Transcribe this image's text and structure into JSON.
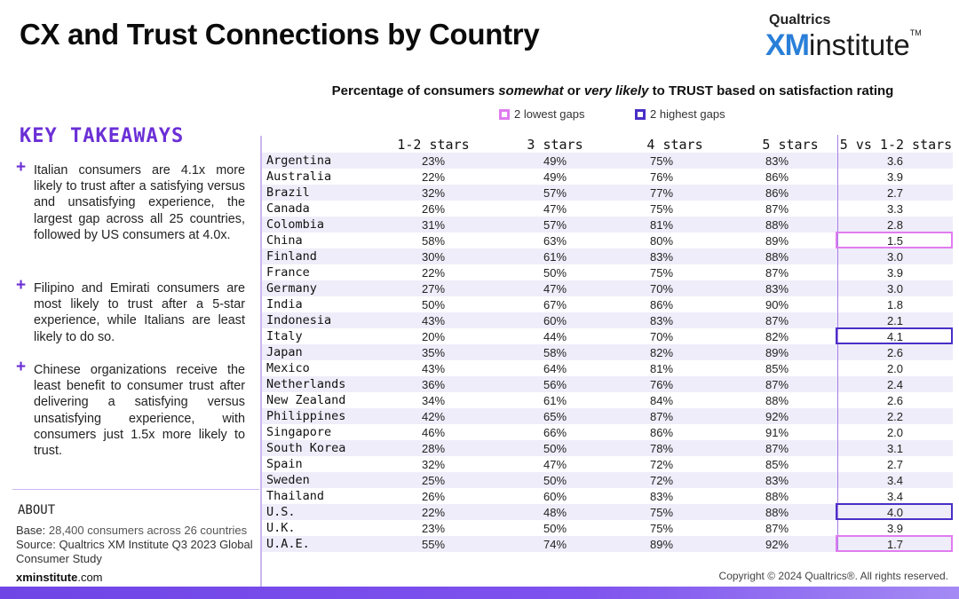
{
  "header": {
    "title": "CX and Trust Connections by Country",
    "brand_top": "Qualtrics",
    "brand_xm": "XM",
    "brand_institute": "institute",
    "brand_tm": "TM"
  },
  "chart_title": {
    "prefix": "Percentage of consumers ",
    "em1": "somewhat",
    "mid": " or ",
    "em2": "very likely",
    "suffix": " to TRUST based on satisfaction rating"
  },
  "legend": {
    "lowest_label": "2 lowest gaps",
    "highest_label": "2 highest gaps",
    "lowest_color": "#e07cf0",
    "highest_color": "#4a2fc7"
  },
  "key_takeaways": {
    "title": "KEY TAKEAWAYS",
    "items": [
      "Italian consumers are 4.1x more likely to trust after a satisfying versus and unsatisfying experience, the largest gap across all 25 countries, followed by US consumers at 4.0x.",
      "Filipino and Emirati consumers are most likely to trust after a 5-star experience, while Italians are least likely to do so.",
      "Chinese organizations receive the least benefit to consumer trust after delivering a satisfying versus unsatisfying experience, with consumers just 1.5x more likely to trust."
    ]
  },
  "about": {
    "title": "ABOUT",
    "base_label": "Base:",
    "base_text": "28,400 consumers across 26 countries",
    "source_label": "Source:",
    "source_text": "Qualtrics XM Institute Q3 2023 Global Consumer Study",
    "site_bold": "xminstitute",
    "site_rest": ".com"
  },
  "copyright": "Copyright © 2024 Qualtrics®. All rights reserved.",
  "chart_data": {
    "type": "table",
    "columns": [
      "1-2 stars",
      "3 stars",
      "4 stars",
      "5 stars",
      "5 vs 1-2 stars"
    ],
    "rows": [
      {
        "country": "Argentina",
        "s12": "23%",
        "s3": "49%",
        "s4": "75%",
        "s5": "83%",
        "ratio": "3.6"
      },
      {
        "country": "Australia",
        "s12": "22%",
        "s3": "49%",
        "s4": "76%",
        "s5": "86%",
        "ratio": "3.9"
      },
      {
        "country": "Brazil",
        "s12": "32%",
        "s3": "57%",
        "s4": "77%",
        "s5": "86%",
        "ratio": "2.7"
      },
      {
        "country": "Canada",
        "s12": "26%",
        "s3": "47%",
        "s4": "75%",
        "s5": "87%",
        "ratio": "3.3"
      },
      {
        "country": "Colombia",
        "s12": "31%",
        "s3": "57%",
        "s4": "81%",
        "s5": "88%",
        "ratio": "2.8"
      },
      {
        "country": "China",
        "s12": "58%",
        "s3": "63%",
        "s4": "80%",
        "s5": "89%",
        "ratio": "1.5"
      },
      {
        "country": "Finland",
        "s12": "30%",
        "s3": "61%",
        "s4": "83%",
        "s5": "88%",
        "ratio": "3.0"
      },
      {
        "country": "France",
        "s12": "22%",
        "s3": "50%",
        "s4": "75%",
        "s5": "87%",
        "ratio": "3.9"
      },
      {
        "country": "Germany",
        "s12": "27%",
        "s3": "47%",
        "s4": "70%",
        "s5": "83%",
        "ratio": "3.0"
      },
      {
        "country": "India",
        "s12": "50%",
        "s3": "67%",
        "s4": "86%",
        "s5": "90%",
        "ratio": "1.8"
      },
      {
        "country": "Indonesia",
        "s12": "43%",
        "s3": "60%",
        "s4": "83%",
        "s5": "87%",
        "ratio": "2.1"
      },
      {
        "country": "Italy",
        "s12": "20%",
        "s3": "44%",
        "s4": "70%",
        "s5": "82%",
        "ratio": "4.1"
      },
      {
        "country": "Japan",
        "s12": "35%",
        "s3": "58%",
        "s4": "82%",
        "s5": "89%",
        "ratio": "2.6"
      },
      {
        "country": "Mexico",
        "s12": "43%",
        "s3": "64%",
        "s4": "81%",
        "s5": "85%",
        "ratio": "2.0"
      },
      {
        "country": "Netherlands",
        "s12": "36%",
        "s3": "56%",
        "s4": "76%",
        "s5": "87%",
        "ratio": "2.4"
      },
      {
        "country": "New Zealand",
        "s12": "34%",
        "s3": "61%",
        "s4": "84%",
        "s5": "88%",
        "ratio": "2.6"
      },
      {
        "country": "Philippines",
        "s12": "42%",
        "s3": "65%",
        "s4": "87%",
        "s5": "92%",
        "ratio": "2.2"
      },
      {
        "country": "Singapore",
        "s12": "46%",
        "s3": "66%",
        "s4": "86%",
        "s5": "91%",
        "ratio": "2.0"
      },
      {
        "country": "South Korea",
        "s12": "28%",
        "s3": "50%",
        "s4": "78%",
        "s5": "87%",
        "ratio": "3.1"
      },
      {
        "country": "Spain",
        "s12": "32%",
        "s3": "47%",
        "s4": "72%",
        "s5": "85%",
        "ratio": "2.7"
      },
      {
        "country": "Sweden",
        "s12": "25%",
        "s3": "50%",
        "s4": "72%",
        "s5": "83%",
        "ratio": "3.4"
      },
      {
        "country": "Thailand",
        "s12": "26%",
        "s3": "60%",
        "s4": "83%",
        "s5": "88%",
        "ratio": "3.4"
      },
      {
        "country": "U.S.",
        "s12": "22%",
        "s3": "48%",
        "s4": "75%",
        "s5": "88%",
        "ratio": "4.0"
      },
      {
        "country": "U.K.",
        "s12": "23%",
        "s3": "50%",
        "s4": "75%",
        "s5": "87%",
        "ratio": "3.9"
      },
      {
        "country": "U.A.E.",
        "s12": "55%",
        "s3": "74%",
        "s4": "89%",
        "s5": "92%",
        "ratio": "1.7"
      }
    ],
    "lowest_gaps": [
      "China",
      "U.A.E."
    ],
    "highest_gaps": [
      "Italy",
      "U.S."
    ]
  }
}
